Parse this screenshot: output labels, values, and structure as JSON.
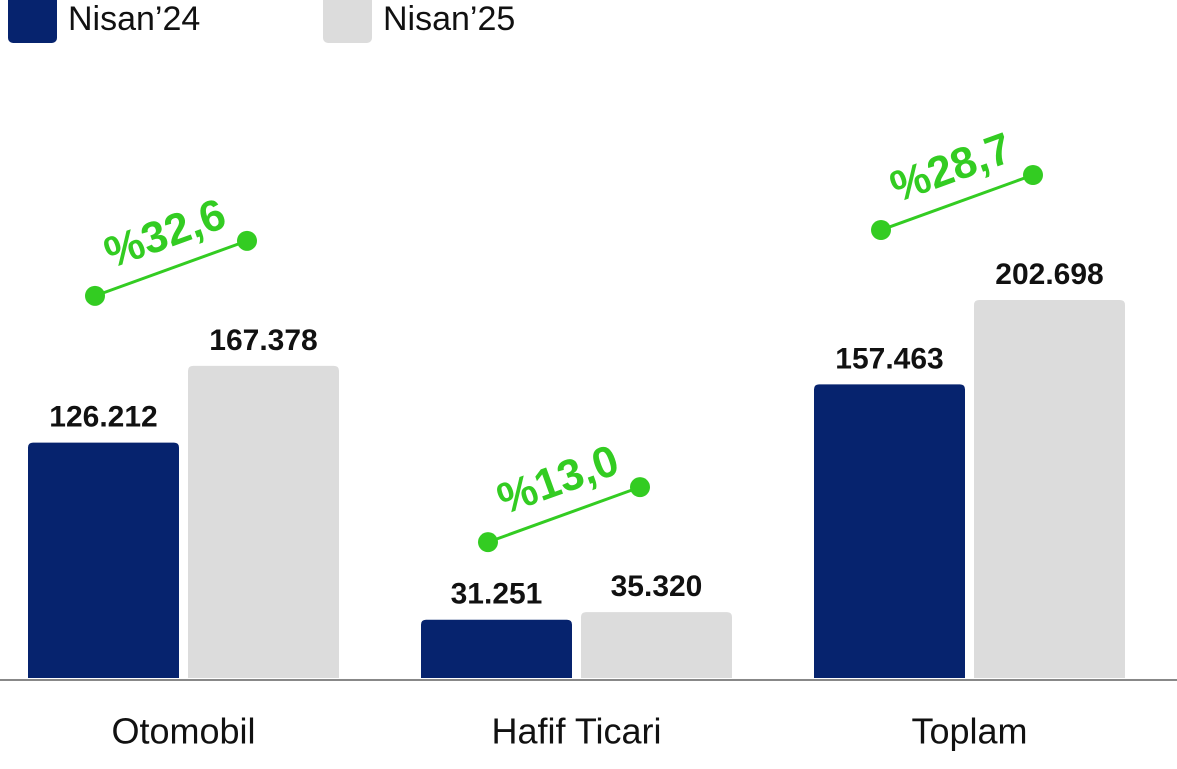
{
  "chart_data": {
    "type": "bar",
    "categories": [
      "Otomobil",
      "Hafif Ticari",
      "Toplam"
    ],
    "series": [
      {
        "name": "Nisan’24",
        "color": "#06236e",
        "values": [
          126212,
          31251,
          157463
        ],
        "value_labels": [
          "126.212",
          "31.251",
          "157.463"
        ]
      },
      {
        "name": "Nisan’25",
        "color": "#dcdcdc",
        "values": [
          167378,
          35320,
          202698
        ],
        "value_labels": [
          "167.378",
          "35.320",
          "202.698"
        ]
      }
    ],
    "annotations": [
      "%32,6",
      "%13,0",
      "%28,7"
    ],
    "annotation_color": "#33cc22",
    "legend": "top-left"
  }
}
